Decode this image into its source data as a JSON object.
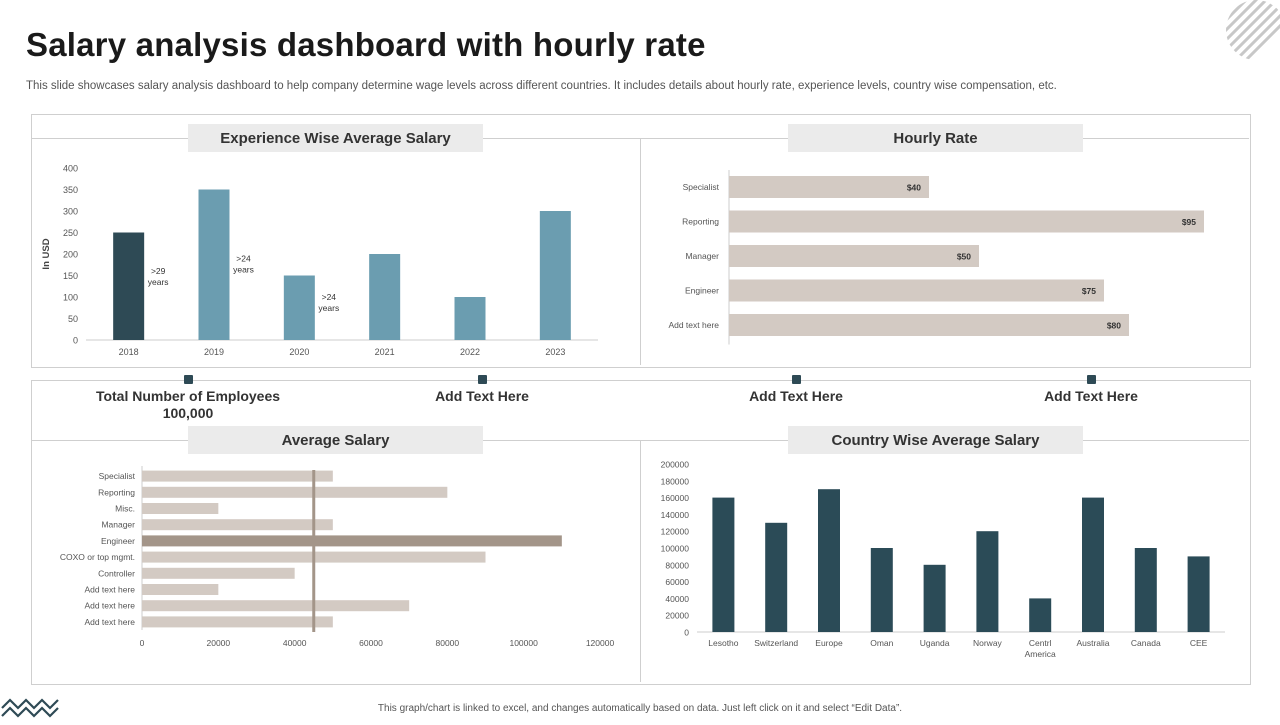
{
  "page": {
    "title": "Salary analysis dashboard with hourly rate",
    "subtitle": "This slide showcases salary analysis dashboard to help company determine wage levels across different countries. It includes details about hourly rate, experience levels, country wise compensation, etc.",
    "footer": "This graph/chart is linked to excel, and changes automatically based on data. Just left click on it and select “Edit Data”."
  },
  "kpis": [
    {
      "label": "Total Number of Employees",
      "value": "100,000"
    },
    {
      "label": "Add Text Here",
      "value": ""
    },
    {
      "label": "Add Text Here",
      "value": ""
    },
    {
      "label": "Add Text Here",
      "value": ""
    }
  ],
  "colors": {
    "dark_teal": "#2e4a55",
    "light_teal": "#6b9db0",
    "beige": "#d3cac3",
    "beige_dark": "#a39589",
    "navy": "#2b4b57"
  },
  "chart_data": [
    {
      "id": "experience",
      "type": "bar",
      "title": "Experience Wise Average Salary",
      "ylabel": "In USD",
      "ylim": [
        0,
        400
      ],
      "yticks": [
        0,
        50,
        100,
        150,
        200,
        250,
        300,
        350,
        400
      ],
      "categories": [
        "2018",
        "2019",
        "2020",
        "2021",
        "2022",
        "2023"
      ],
      "values": [
        250,
        350,
        150,
        200,
        100,
        300
      ],
      "bar_colors": [
        "#2e4a55",
        "#6b9db0",
        "#6b9db0",
        "#6b9db0",
        "#6b9db0",
        "#6b9db0"
      ],
      "annotations": [
        {
          "category": "2018",
          "value": 160,
          "lines": [
            ">29",
            "years"
          ]
        },
        {
          "category": "2019",
          "value": 190,
          "lines": [
            ">24",
            "years"
          ]
        },
        {
          "category": "2020",
          "value": 100,
          "lines": [
            ">24",
            "years"
          ]
        }
      ]
    },
    {
      "id": "hourly",
      "type": "bar",
      "orientation": "horizontal",
      "title": "Hourly Rate",
      "categories": [
        "Specialist",
        "Reporting",
        "Manager",
        "Engineer",
        "Add text here"
      ],
      "values": [
        40,
        95,
        50,
        75,
        80
      ],
      "data_labels": [
        "$40",
        "$95",
        "$50",
        "$75",
        "$80"
      ],
      "xlim": [
        0,
        100
      ]
    },
    {
      "id": "average",
      "type": "bar",
      "orientation": "horizontal",
      "title": "Average Salary",
      "categories": [
        "Specialist",
        "Reporting",
        "Misc.",
        "Manager",
        "Engineer",
        "COXO or top mgmt.",
        "Controller",
        "Add text here",
        "Add text here",
        "Add text here"
      ],
      "values": [
        50000,
        80000,
        20000,
        50000,
        110000,
        90000,
        40000,
        20000,
        70000,
        50000
      ],
      "highlight_index": 4,
      "reference_line": 45000,
      "xlim": [
        0,
        120000
      ],
      "xticks": [
        0,
        20000,
        40000,
        60000,
        80000,
        100000,
        120000
      ]
    },
    {
      "id": "country",
      "type": "bar",
      "title": "Country Wise Average Salary",
      "ylim": [
        0,
        200000
      ],
      "yticks": [
        0,
        20000,
        40000,
        60000,
        80000,
        100000,
        120000,
        140000,
        160000,
        180000,
        200000
      ],
      "categories": [
        "Lesotho",
        "Switzerland",
        "Europe",
        "Oman",
        "Uganda",
        "Norway",
        "Centrl America",
        "Australia",
        "Canada",
        "CEE"
      ],
      "category_lines": [
        [
          "Lesotho"
        ],
        [
          "Switzerland"
        ],
        [
          "Europe"
        ],
        [
          "Oman"
        ],
        [
          "Uganda"
        ],
        [
          "Norway"
        ],
        [
          "Centrl",
          "America"
        ],
        [
          "Australia"
        ],
        [
          "Canada"
        ],
        [
          "CEE"
        ]
      ],
      "values": [
        160000,
        130000,
        170000,
        100000,
        80000,
        120000,
        40000,
        160000,
        100000,
        90000
      ]
    }
  ]
}
